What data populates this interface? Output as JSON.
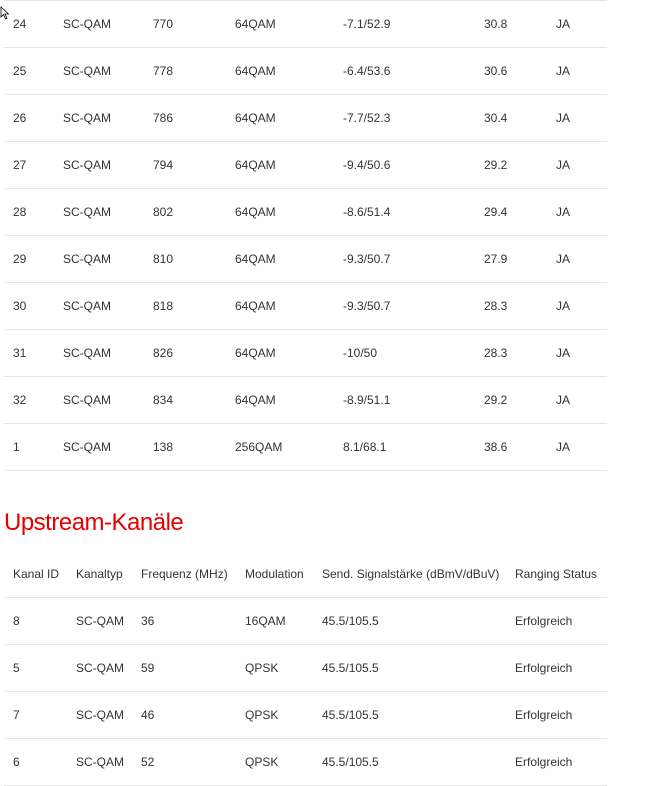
{
  "downstream": {
    "rows": [
      [
        "24",
        "SC-QAM",
        "770",
        "64QAM",
        "-7.1/52.9",
        "30.8",
        "JA"
      ],
      [
        "25",
        "SC-QAM",
        "778",
        "64QAM",
        "-6.4/53.6",
        "30.6",
        "JA"
      ],
      [
        "26",
        "SC-QAM",
        "786",
        "64QAM",
        "-7.7/52.3",
        "30.4",
        "JA"
      ],
      [
        "27",
        "SC-QAM",
        "794",
        "64QAM",
        "-9.4/50.6",
        "29.2",
        "JA"
      ],
      [
        "28",
        "SC-QAM",
        "802",
        "64QAM",
        "-8.6/51.4",
        "29.4",
        "JA"
      ],
      [
        "29",
        "SC-QAM",
        "810",
        "64QAM",
        "-9.3/50.7",
        "27.9",
        "JA"
      ],
      [
        "30",
        "SC-QAM",
        "818",
        "64QAM",
        "-9.3/50.7",
        "28.3",
        "JA"
      ],
      [
        "31",
        "SC-QAM",
        "826",
        "64QAM",
        "-10/50",
        "28.3",
        "JA"
      ],
      [
        "32",
        "SC-QAM",
        "834",
        "64QAM",
        "-8.9/51.1",
        "29.2",
        "JA"
      ],
      [
        "1",
        "SC-QAM",
        "138",
        "256QAM",
        "8.1/68.1",
        "38.6",
        "JA"
      ]
    ]
  },
  "upstream": {
    "title": "Upstream-Kanäle",
    "headers": [
      "Kanal ID",
      "Kanaltyp",
      "Frequenz (MHz)",
      "Modulation",
      "Send. Signalstärke (dBmV/dBuV)",
      "Ranging Status"
    ],
    "rows": [
      [
        "8",
        "SC-QAM",
        "36",
        "16QAM",
        "45.5/105.5",
        "Erfolgreich"
      ],
      [
        "5",
        "SC-QAM",
        "59",
        "QPSK",
        "45.5/105.5",
        "Erfolgreich"
      ],
      [
        "7",
        "SC-QAM",
        "46",
        "QPSK",
        "45.5/105.5",
        "Erfolgreich"
      ],
      [
        "6",
        "SC-QAM",
        "52",
        "QPSK",
        "45.5/105.5",
        "Erfolgreich"
      ]
    ]
  },
  "colors": {
    "accent": "#e60000"
  }
}
